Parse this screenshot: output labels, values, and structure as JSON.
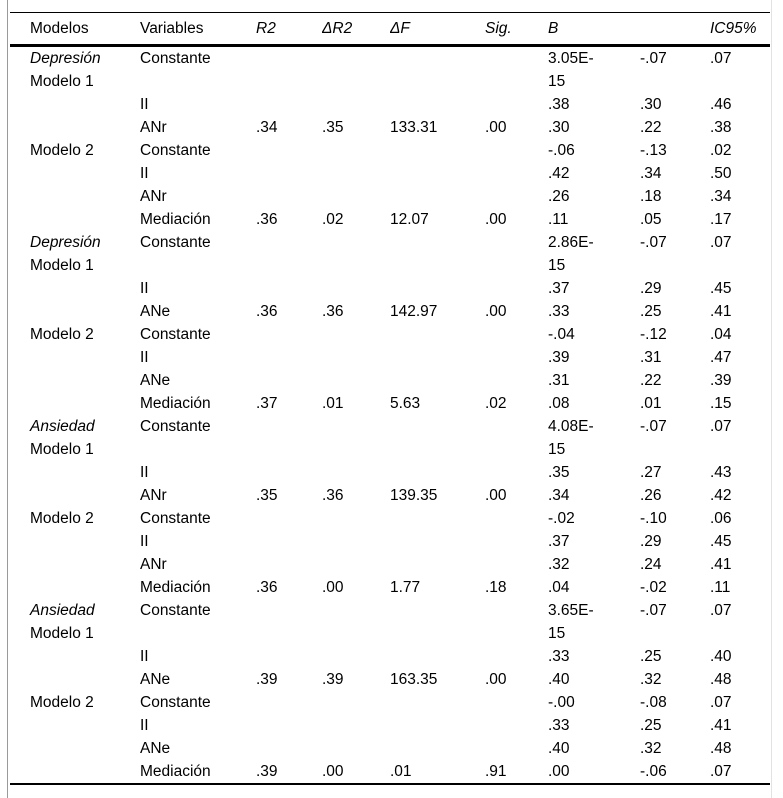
{
  "colors": {
    "background": "#ffffff",
    "text": "#000000",
    "table_rules": "#000000",
    "page_edge_left": "#9a9a9a",
    "page_edge_right": "#e2e2e2"
  },
  "table": {
    "columns": [
      "Modelos",
      "Variables",
      "R2",
      "ΔR2",
      "ΔF",
      "Sig.",
      "B",
      "",
      "IC95%"
    ],
    "rows": [
      {
        "sec": "Depresión",
        "mod": "Modelo 1",
        "v": "Constante",
        "r2": "",
        "dr2": "",
        "df": "",
        "sig": "",
        "b": "3.05E-\n15",
        "lo": "-.07",
        "hi": ".07"
      },
      {
        "sec": "",
        "mod": "",
        "v": "II",
        "r2": "",
        "dr2": "",
        "df": "",
        "sig": "",
        "b": ".38",
        "lo": ".30",
        "hi": ".46"
      },
      {
        "sec": "",
        "mod": "",
        "v": "ANr",
        "r2": ".34",
        "dr2": ".35",
        "df": "133.31",
        "sig": ".00",
        "b": ".30",
        "lo": ".22",
        "hi": ".38"
      },
      {
        "sec": "",
        "mod": "Modelo 2",
        "v": "Constante",
        "r2": "",
        "dr2": "",
        "df": "",
        "sig": "",
        "b": "-.06",
        "lo": "-.13",
        "hi": ".02"
      },
      {
        "sec": "",
        "mod": "",
        "v": "II",
        "r2": "",
        "dr2": "",
        "df": "",
        "sig": "",
        "b": ".42",
        "lo": ".34",
        "hi": ".50"
      },
      {
        "sec": "",
        "mod": "",
        "v": "ANr",
        "r2": "",
        "dr2": "",
        "df": "",
        "sig": "",
        "b": ".26",
        "lo": ".18",
        "hi": ".34"
      },
      {
        "sec": "",
        "mod": "",
        "v": "Mediación",
        "r2": ".36",
        "dr2": ".02",
        "df": "12.07",
        "sig": ".00",
        "b": ".11",
        "lo": ".05",
        "hi": ".17"
      },
      {
        "sec": "Depresión",
        "mod": "Modelo 1",
        "v": "Constante",
        "r2": "",
        "dr2": "",
        "df": "",
        "sig": "",
        "b": "2.86E-\n15",
        "lo": "-.07",
        "hi": ".07"
      },
      {
        "sec": "",
        "mod": "",
        "v": "II",
        "r2": "",
        "dr2": "",
        "df": "",
        "sig": "",
        "b": ".37",
        "lo": ".29",
        "hi": ".45"
      },
      {
        "sec": "",
        "mod": "",
        "v": "ANe",
        "r2": ".36",
        "dr2": ".36",
        "df": "142.97",
        "sig": ".00",
        "b": ".33",
        "lo": ".25",
        "hi": ".41"
      },
      {
        "sec": "",
        "mod": "Modelo 2",
        "v": "Constante",
        "r2": "",
        "dr2": "",
        "df": "",
        "sig": "",
        "b": "-.04",
        "lo": "-.12",
        "hi": ".04"
      },
      {
        "sec": "",
        "mod": "",
        "v": "II",
        "r2": "",
        "dr2": "",
        "df": "",
        "sig": "",
        "b": ".39",
        "lo": ".31",
        "hi": ".47"
      },
      {
        "sec": "",
        "mod": "",
        "v": "ANe",
        "r2": "",
        "dr2": "",
        "df": "",
        "sig": "",
        "b": ".31",
        "lo": ".22",
        "hi": ".39"
      },
      {
        "sec": "",
        "mod": "",
        "v": "Mediación",
        "r2": ".37",
        "dr2": ".01",
        "df": "5.63",
        "sig": ".02",
        "b": ".08",
        "lo": ".01",
        "hi": ".15"
      },
      {
        "sec": "Ansiedad",
        "mod": "Modelo 1",
        "v": "Constante",
        "r2": "",
        "dr2": "",
        "df": "",
        "sig": "",
        "b": "4.08E-\n15",
        "lo": "-.07",
        "hi": ".07"
      },
      {
        "sec": "",
        "mod": "",
        "v": "II",
        "r2": "",
        "dr2": "",
        "df": "",
        "sig": "",
        "b": ".35",
        "lo": ".27",
        "hi": ".43"
      },
      {
        "sec": "",
        "mod": "",
        "v": "ANr",
        "r2": ".35",
        "dr2": ".36",
        "df": "139.35",
        "sig": ".00",
        "b": ".34",
        "lo": ".26",
        "hi": ".42"
      },
      {
        "sec": "",
        "mod": "Modelo 2",
        "v": "Constante",
        "r2": "",
        "dr2": "",
        "df": "",
        "sig": "",
        "b": "-.02",
        "lo": "-.10",
        "hi": ".06"
      },
      {
        "sec": "",
        "mod": "",
        "v": "II",
        "r2": "",
        "dr2": "",
        "df": "",
        "sig": "",
        "b": ".37",
        "lo": ".29",
        "hi": ".45"
      },
      {
        "sec": "",
        "mod": "",
        "v": "ANr",
        "r2": "",
        "dr2": "",
        "df": "",
        "sig": "",
        "b": ".32",
        "lo": ".24",
        "hi": ".41"
      },
      {
        "sec": "",
        "mod": "",
        "v": "Mediación",
        "r2": ".36",
        "dr2": ".00",
        "df": "1.77",
        "sig": ".18",
        "b": ".04",
        "lo": "-.02",
        "hi": ".11"
      },
      {
        "sec": "Ansiedad",
        "mod": "Modelo 1",
        "v": "Constante",
        "r2": "",
        "dr2": "",
        "df": "",
        "sig": "",
        "b": "3.65E-\n15",
        "lo": "-.07",
        "hi": ".07"
      },
      {
        "sec": "",
        "mod": "",
        "v": "II",
        "r2": "",
        "dr2": "",
        "df": "",
        "sig": "",
        "b": ".33",
        "lo": ".25",
        "hi": ".40"
      },
      {
        "sec": "",
        "mod": "",
        "v": "ANe",
        "r2": ".39",
        "dr2": ".39",
        "df": "163.35",
        "sig": ".00",
        "b": ".40",
        "lo": ".32",
        "hi": ".48"
      },
      {
        "sec": "",
        "mod": "Modelo 2",
        "v": "Constante",
        "r2": "",
        "dr2": "",
        "df": "",
        "sig": "",
        "b": "-.00",
        "lo": "-.08",
        "hi": ".07"
      },
      {
        "sec": "",
        "mod": "",
        "v": "II",
        "r2": "",
        "dr2": "",
        "df": "",
        "sig": "",
        "b": ".33",
        "lo": ".25",
        "hi": ".41"
      },
      {
        "sec": "",
        "mod": "",
        "v": "ANe",
        "r2": "",
        "dr2": "",
        "df": "",
        "sig": "",
        "b": ".40",
        "lo": ".32",
        "hi": ".48"
      },
      {
        "sec": "",
        "mod": "",
        "v": "Mediación",
        "r2": ".39",
        "dr2": ".00",
        "df": ".01",
        "sig": ".91",
        "b": ".00",
        "lo": "-.06",
        "hi": ".07"
      }
    ]
  }
}
